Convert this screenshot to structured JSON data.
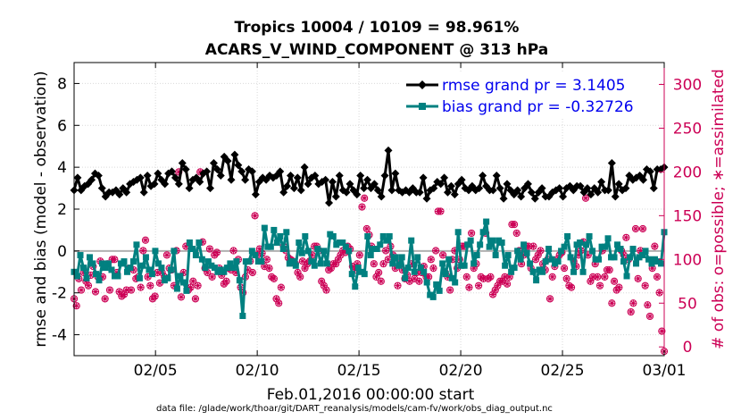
{
  "chart_data": {
    "type": "line",
    "title": "Tropics 10004 / 10109 = 98.961%",
    "subtitle": "ACARS_V_WIND_COMPONENT @ 313 hPa",
    "ylabel": "rmse and bias (model - observation)",
    "y2label": "# of obs: o=possible; ∗=assimilated",
    "xlabel": "Feb.01,2016 00:00:00 start",
    "footnote": "data file: /glade/work/thoar/git/DART_reanalysis/models/cam-fv/work/obs_diag_output.nc",
    "xlim": [
      1,
      30
    ],
    "ylim": [
      -5,
      9
    ],
    "y2lim": [
      -10,
      325
    ],
    "x_ticks": [
      {
        "value": 5,
        "label": "02/05"
      },
      {
        "value": 10,
        "label": "02/10"
      },
      {
        "value": 15,
        "label": "02/15"
      },
      {
        "value": 20,
        "label": "02/20"
      },
      {
        "value": 25,
        "label": "02/25"
      },
      {
        "value": 30,
        "label": "03/01"
      }
    ],
    "y_ticks": [
      8,
      6,
      4,
      2,
      0,
      -2,
      -4
    ],
    "y_tick_labels": [
      "8",
      "6",
      "4",
      "2",
      "0",
      "-2",
      "-4"
    ],
    "y2_ticks": [
      300,
      250,
      200,
      150,
      100,
      50,
      0
    ],
    "y2_tick_labels": [
      "300",
      "250",
      "200",
      "150",
      "100",
      "50",
      "0"
    ],
    "legend": [
      {
        "label": "rmse grand pr = 3.1405",
        "color": "#000000",
        "marker": "diamond"
      },
      {
        "label": "bias grand pr = -0.32726",
        "color": "#008080",
        "marker": "square"
      }
    ],
    "legend_position": "top-right",
    "grid": true,
    "zero_line": true,
    "colors": {
      "rmse": "#000000",
      "bias": "#008080",
      "obs": "#cc0055",
      "grid": "#d9d9d9",
      "zero_line": "#b0b0b0"
    },
    "series": [
      {
        "name": "rmse grand pr = 3.1405",
        "values": [
          2.9,
          3.5,
          2.9,
          3.1,
          3.2,
          3.4,
          3.7,
          3.6,
          3.0,
          2.6,
          2.8,
          2.8,
          2.9,
          2.7,
          3.0,
          2.8,
          3.2,
          3.3,
          3.4,
          3.5,
          2.8,
          3.6,
          3.1,
          3.2,
          3.7,
          3.4,
          3.2,
          3.7,
          3.8,
          3.5,
          3.2,
          4.2,
          3.9,
          3.0,
          3.4,
          3.5,
          3.3,
          3.7,
          3.8,
          3.0,
          4.2,
          3.9,
          3.6,
          4.5,
          4.3,
          3.4,
          4.6,
          4.1,
          3.8,
          3.4,
          3.9,
          3.8,
          2.7,
          3.3,
          3.5,
          3.4,
          3.6,
          3.5,
          3.6,
          3.8,
          2.8,
          3.1,
          3.6,
          3.0,
          3.5,
          2.9,
          4.0,
          3.2,
          3.5,
          3.6,
          3.2,
          3.3,
          3.4,
          2.3,
          3.3,
          2.6,
          3.6,
          2.9,
          2.8,
          3.2,
          2.9,
          2.7,
          3.6,
          3.0,
          3.4,
          3.0,
          3.2,
          2.9,
          2.6,
          3.6,
          4.8,
          2.9,
          3.7,
          2.9,
          2.8,
          2.9,
          2.8,
          3.0,
          2.8,
          2.8,
          3.5,
          2.5,
          2.9,
          3.0,
          3.3,
          3.2,
          3.5,
          2.8,
          3.1,
          2.7,
          3.2,
          3.4,
          3.0,
          2.9,
          3.1,
          2.9,
          3.0,
          3.6,
          3.1,
          2.9,
          2.9,
          3.6,
          3.0,
          2.5,
          3.2,
          2.9,
          2.7,
          2.9,
          2.6,
          3.0,
          3.2,
          2.8,
          2.5,
          2.8,
          3.0,
          2.6,
          2.6,
          2.8,
          2.9,
          3.0,
          2.6,
          3.0,
          3.1,
          2.9,
          3.1,
          3.1,
          2.8,
          3.0,
          2.7,
          3.0,
          2.8,
          3.3,
          2.9,
          2.9,
          4.2,
          2.6,
          3.2,
          2.9,
          3.0,
          3.6,
          3.4,
          3.5,
          3.6,
          3.4,
          3.9,
          3.8,
          3.0,
          3.9,
          3.9,
          4.0
        ]
      },
      {
        "name": "bias grand pr = -0.32726",
        "values": [
          -1.0,
          -1.2,
          -0.2,
          -0.8,
          -1.3,
          -0.3,
          -0.6,
          -1.1,
          -1.4,
          -0.6,
          -0.8,
          -0.6,
          -0.9,
          -1.2,
          -1.2,
          -0.6,
          -0.5,
          -1.0,
          -0.8,
          -0.5,
          0.3,
          -1.3,
          -0.7,
          -0.3,
          -0.9,
          -1.1,
          0.0,
          -0.6,
          -0.8,
          -1.4,
          -1.3,
          -0.9,
          0.0,
          -1.8,
          -1.2,
          -1.5,
          -1.9,
          0.4,
          0.1,
          -0.2,
          0.4,
          -0.4,
          -0.8,
          -0.5,
          -0.7,
          -0.8,
          -1.0,
          -0.9,
          -1.0,
          -0.8,
          -0.6,
          -0.8,
          -0.5,
          -1.4,
          -3.1,
          -0.5,
          -0.5,
          0.0,
          -0.2,
          -0.5,
          -0.5,
          1.1,
          0.2,
          0.2,
          1.0,
          0.4,
          0.7,
          0.1,
          0.9,
          -0.6,
          -0.5,
          -0.7,
          0.4,
          -0.1,
          0.7,
          0.0,
          -0.5,
          -0.7,
          0.1,
          -0.6,
          0.0,
          -0.6,
          0.8,
          0.7,
          0.3,
          0.4,
          0.4,
          0.2,
          0.0,
          -1.1,
          -1.7,
          -0.8,
          -1.0,
          -1.1,
          0.7,
          -0.2,
          0.1,
          0.1,
          0.3,
          0.7,
          0.5,
          0.7,
          -0.6,
          -0.3,
          -0.7,
          -0.3,
          -1.3,
          -0.8,
          0.5,
          -1.0,
          -0.3,
          -0.8,
          -1.0,
          -1.5,
          -2.1,
          -2.2,
          -1.6,
          -1.9,
          -0.6,
          -1.1,
          -0.4,
          -1.3,
          -1.5,
          0.9,
          -0.7,
          -0.7,
          0.3,
          0.5,
          -0.6,
          -0.2,
          0.3,
          0.9,
          1.4,
          0.2,
          0.5,
          -0.2,
          0.5,
          0.4,
          -0.7,
          -0.2,
          -1.0,
          -0.8,
          0.0,
          -0.4,
          0.3,
          -0.1,
          -0.6,
          -1.0,
          -1.4,
          -0.9,
          -1.0,
          -0.5,
          0.1,
          -0.4,
          -0.6,
          -0.5,
          0.0,
          0.2,
          0.7,
          -0.3,
          -1.0,
          0.3,
          0.4,
          -1.0,
          0.3,
          0.7,
          0.0,
          -0.4,
          -0.4,
          0.2,
          0.2,
          0.6,
          -0.3,
          -0.3,
          0.3,
          0.1,
          -0.5,
          -1.2,
          -0.3,
          0.1,
          -0.6,
          -0.3,
          -0.2,
          0.0,
          -0.4,
          -0.6,
          -0.4,
          -0.5,
          -0.6,
          0.9
        ]
      },
      {
        "name": "",
        "values": [
          55,
          47,
          78,
          65,
          85,
          75,
          70,
          82,
          92,
          63,
          80,
          98,
          80,
          55,
          95,
          65,
          100,
          100,
          85,
          63,
          58,
          60,
          65,
          90,
          65,
          88,
          78,
          80,
          68,
          110,
          122,
          80,
          70,
          55,
          58,
          85,
          73,
          85,
          80,
          105,
          90,
          88,
          70,
          110,
          200,
          57,
          85,
          115,
          65,
          68,
          75,
          55,
          70,
          200,
          120,
          90,
          85,
          112,
          80,
          105,
          108,
          90,
          82,
          72,
          75,
          90,
          88,
          110,
          85,
          100,
          68,
          62,
          80,
          88,
          98,
          85,
          150,
          105,
          112,
          107,
          92,
          100,
          90,
          80,
          78,
          55,
          50,
          68,
          115,
          110,
          102,
          100,
          98,
          95,
          85,
          80,
          98,
          90,
          95,
          98,
          105,
          115,
          115,
          110,
          75,
          70,
          65,
          88,
          90,
          95,
          95,
          100,
          105,
          110,
          108,
          115,
          112,
          92,
          88,
          95,
          105,
          160,
          170,
          135,
          128,
          115,
          95,
          80,
          85,
          75,
          95,
          110,
          100,
          115,
          105,
          90,
          70,
          95,
          88,
          78,
          82,
          75,
          95,
          78,
          85,
          75,
          85,
          92,
          80,
          80,
          100,
          90,
          110,
          155,
          155,
          105,
          85,
          80,
          65,
          100,
          110,
          90,
          100,
          115,
          115,
          80,
          68,
          130,
          90,
          95,
          70,
          80,
          78,
          130,
          78,
          80,
          60,
          65,
          70,
          75,
          75,
          80,
          72,
          80,
          140,
          140,
          130,
          110,
          95,
          105,
          115,
          115,
          90,
          115,
          100,
          105,
          110,
          95,
          88,
          100,
          55,
          80,
          92,
          100,
          105,
          108,
          90,
          78,
          70,
          68,
          98,
          92,
          105,
          110,
          120,
          170,
          105,
          75,
          80,
          95,
          80,
          70,
          110,
          80,
          88,
          88,
          50,
          75,
          65,
          68,
          110,
          105,
          125,
          100,
          40,
          50,
          135,
          78,
          110,
          135,
          70,
          48,
          35,
          90,
          115,
          80,
          62,
          18,
          -5
        ]
      }
    ]
  }
}
